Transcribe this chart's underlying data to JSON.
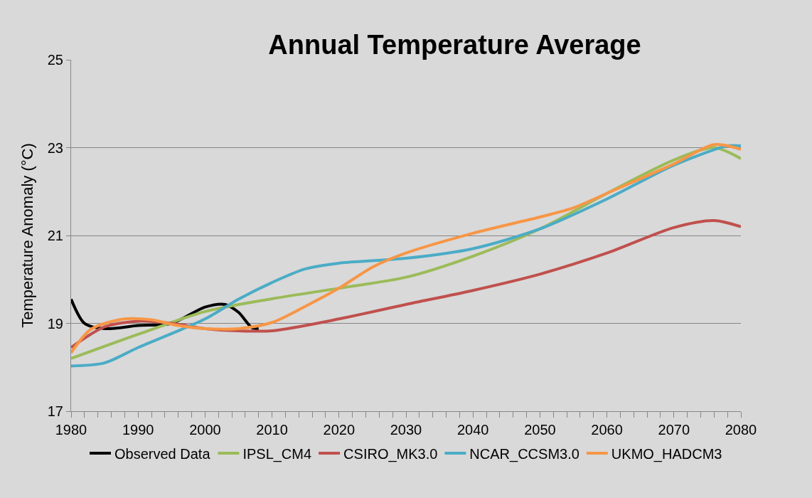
{
  "chart_data": {
    "type": "line",
    "title": "Annual Temperature Average",
    "ylabel": "Temperature Anomaly (°C)",
    "xlim": [
      1980,
      2080
    ],
    "xticks": [
      1980,
      1990,
      2000,
      2010,
      2020,
      2030,
      2040,
      2050,
      2060,
      2070,
      2080
    ],
    "ylim": [
      17,
      25
    ],
    "yticks": [
      17,
      19,
      21,
      23,
      25
    ],
    "grid": "y",
    "legend": "bottom",
    "marker": "none",
    "line_style": "solid",
    "series": [
      {
        "name": "Observed Data",
        "color": "#000000",
        "x": [
          1980,
          1982,
          1985,
          1990,
          1995,
          2000,
          2003,
          2005,
          2007,
          2008
        ],
        "values": [
          19.55,
          19.0,
          18.88,
          18.95,
          19.0,
          19.37,
          19.43,
          19.25,
          18.9,
          18.88
        ]
      },
      {
        "name": "IPSL_CM4",
        "color": "#9bbb59",
        "x": [
          1980,
          1990,
          2000,
          2010,
          2020,
          2030,
          2040,
          2050,
          2060,
          2070,
          2076,
          2080
        ],
        "values": [
          18.2,
          18.75,
          19.27,
          19.56,
          19.8,
          20.05,
          20.53,
          21.15,
          21.96,
          22.72,
          23.0,
          22.75
        ]
      },
      {
        "name": "CSIRO_MK3.0",
        "color": "#c0504d",
        "x": [
          1980,
          1985,
          1990,
          1995,
          2000,
          2005,
          2010,
          2020,
          2030,
          2040,
          2050,
          2060,
          2070,
          2076,
          2080
        ],
        "values": [
          18.45,
          18.92,
          19.05,
          19.0,
          18.88,
          18.83,
          18.83,
          19.1,
          19.43,
          19.75,
          20.12,
          20.6,
          21.18,
          21.34,
          21.2
        ]
      },
      {
        "name": "NCAR_CCSM3.0",
        "color": "#4bacc6",
        "x": [
          1980,
          1985,
          1990,
          2000,
          2005,
          2010,
          2015,
          2020,
          2030,
          2040,
          2050,
          2060,
          2070,
          2078,
          2080
        ],
        "values": [
          18.03,
          18.1,
          18.45,
          19.1,
          19.55,
          19.93,
          20.24,
          20.37,
          20.48,
          20.7,
          21.15,
          21.83,
          22.6,
          23.04,
          23.04
        ]
      },
      {
        "name": "UKMO_HADCM3",
        "color": "#f79646",
        "x": [
          1980,
          1983,
          1988,
          1992,
          1996,
          2000,
          2005,
          2010,
          2015,
          2020,
          2025,
          2030,
          2040,
          2050,
          2055,
          2060,
          2070,
          2076,
          2080
        ],
        "values": [
          18.33,
          18.87,
          19.1,
          19.08,
          18.95,
          18.88,
          18.88,
          19.02,
          19.39,
          19.8,
          20.28,
          20.6,
          21.05,
          21.42,
          21.63,
          21.96,
          22.63,
          23.07,
          22.96
        ]
      }
    ]
  }
}
